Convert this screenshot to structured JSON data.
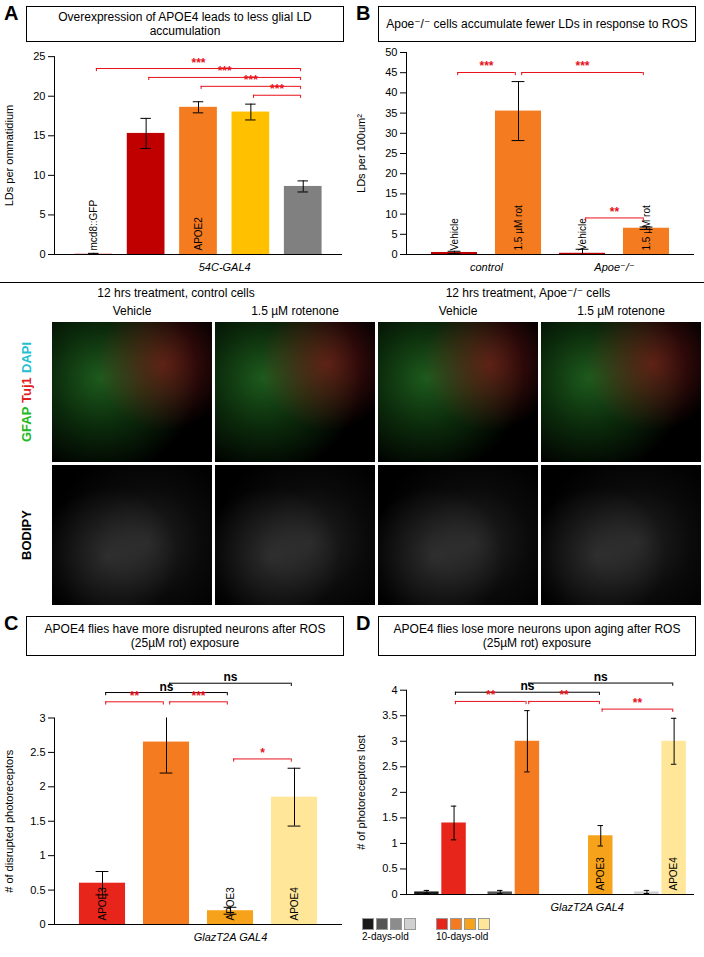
{
  "chart_data": [
    {
      "panel": "A",
      "type": "bar",
      "title": "Overexpression of APOE4 leads to less glial LD accumulation",
      "y_label": "LDs per ommatidium",
      "categories": [
        "mcd8::GFP",
        null,
        "APOE2",
        null,
        null
      ],
      "values": [
        0.1,
        15.3,
        18.6,
        18.0,
        8.6
      ],
      "errors": [
        0.05,
        1.9,
        0.7,
        1.0,
        0.7
      ],
      "colors": [
        "#f4b6b6",
        "#c00000",
        "#f47b20",
        "#ffc000",
        "#808080"
      ],
      "ylim": [
        0,
        25
      ],
      "yticks": [
        0,
        5,
        10,
        15,
        20,
        25
      ],
      "x_groups": [
        {
          "label": "54C-GAL4",
          "from": 1,
          "to": 4
        }
      ],
      "annotations": [
        {
          "from": 3,
          "to": 4,
          "label": "***",
          "color": "#e8101a"
        },
        {
          "from": 2,
          "to": 4,
          "label": "***",
          "color": "#e8101a"
        },
        {
          "from": 1,
          "to": 4,
          "label": "***",
          "color": "#e8101a"
        },
        {
          "from": 0,
          "to": 4,
          "label": "***",
          "color": "#e8101a"
        }
      ]
    },
    {
      "panel": "B",
      "type": "bar",
      "title": "Apoe⁻/⁻ cells accumulate fewer LDs in response to ROS",
      "y_label": "LDs per 100um²",
      "categories": [
        "Vehicle",
        "1.5 µM rot",
        "Vehicle",
        "1.5 µM rot"
      ],
      "values": [
        0.5,
        35.5,
        0.3,
        6.5
      ],
      "errors": [
        0.3,
        7.3,
        1.0,
        0.3
      ],
      "colors": [
        "#c00000",
        "#f47b20",
        "#c00000",
        "#f47b20"
      ],
      "ylim": [
        0,
        50
      ],
      "yticks": [
        0,
        5,
        10,
        15,
        20,
        25,
        30,
        35,
        40,
        45,
        50
      ],
      "x_groups": [
        {
          "label": "control",
          "from": 0,
          "to": 1
        },
        {
          "label": "Apoe⁻/⁻",
          "from": 2,
          "to": 3
        }
      ],
      "annotations": [
        {
          "from": 0,
          "to": 1,
          "label": "***",
          "color": "#e8101a"
        },
        {
          "from": 2,
          "to": 3,
          "label": "**",
          "color": "#e8101a"
        },
        {
          "from": 1,
          "to": 3,
          "label": "***",
          "color": "#e8101a"
        }
      ]
    },
    {
      "panel": "C",
      "type": "bar",
      "title": "APOE4 flies have more disrupted neurons after ROS (25µM rot) exposure",
      "y_label": "# of disrupted photoreceptors",
      "categories": [
        "APOE3",
        null,
        "APOE3",
        "APOE4"
      ],
      "values": [
        0.6,
        2.65,
        0.2,
        1.85
      ],
      "errors": [
        0.17,
        0.45,
        0.05,
        0.42
      ],
      "colors": [
        "#e8251a",
        "#f47b20",
        "#f7a21b",
        "#ffe699"
      ],
      "ylim": [
        0,
        3
      ],
      "yticks": [
        0,
        0.5,
        1,
        1.5,
        2,
        2.5,
        3
      ],
      "x_groups": [
        {
          "label": "GlazT2A GAL4",
          "from": 1,
          "to": 3
        }
      ],
      "annotations": [
        {
          "from": 0,
          "to": 1,
          "label": "**",
          "color": "#e8101a"
        },
        {
          "from": 1,
          "to": 2,
          "label": "***",
          "color": "#e8101a"
        },
        {
          "from": 2,
          "to": 3,
          "label": "*",
          "color": "#e8101a"
        },
        {
          "from": 0,
          "to": 2,
          "label": "ns",
          "color": "#000000"
        },
        {
          "from": 1,
          "to": 3,
          "label": "ns",
          "color": "#000000"
        }
      ]
    },
    {
      "panel": "D",
      "type": "grouped_bar",
      "title": "APOE4 flies lose more neurons upon aging after ROS (25µM rot) exposure",
      "y_label": "# of photoreceptors lost",
      "categories": [
        null,
        null,
        "APOE3",
        "APOE4"
      ],
      "series": [
        {
          "name": "2-days-old",
          "colors": [
            "#1a1a1a",
            "#555555",
            "#8c8c8c",
            "#d0d0d0"
          ],
          "values": [
            0.05,
            0.05,
            0.0,
            0.05
          ],
          "errors": [
            0.03,
            0.03,
            0.0,
            0.03
          ]
        },
        {
          "name": "10-days-old",
          "colors": [
            "#e8251a",
            "#f47b20",
            "#f7a21b",
            "#ffe699"
          ],
          "values": [
            1.4,
            3.0,
            1.15,
            3.0
          ],
          "errors": [
            0.33,
            0.6,
            0.2,
            0.45
          ]
        }
      ],
      "ylim": [
        0,
        4
      ],
      "yticks": [
        0,
        0.5,
        1,
        1.5,
        2,
        2.5,
        3,
        3.5,
        4
      ],
      "legend": "bottom-left",
      "x_groups": [
        {
          "label": "GlazT2A GAL4",
          "from": 1,
          "to": 3
        }
      ],
      "annotations": [
        {
          "from": 0,
          "to": 1,
          "label": "**",
          "color": "#e8101a"
        },
        {
          "from": 1,
          "to": 2,
          "label": "**",
          "color": "#e8101a"
        },
        {
          "from": 2,
          "to": 3,
          "label": "**",
          "color": "#e8101a"
        },
        {
          "from": 0,
          "to": 2,
          "label": "ns",
          "color": "#000000"
        },
        {
          "from": 1,
          "to": 3,
          "label": "ns",
          "color": "#000000"
        }
      ]
    }
  ],
  "image_panels": {
    "headers": [
      "12 hrs treatment, control cells",
      "12 hrs treatment, Apoe⁻/⁻ cells"
    ],
    "columns": [
      "Vehicle",
      "1.5 µM rotenone",
      "Vehicle",
      "1.5 µM rotenone"
    ],
    "rows": [
      [
        {
          "text": "GFAP",
          "color": "#22b822"
        },
        {
          "text": "Tuj1",
          "color": "#e02020"
        },
        {
          "text": "DAPI",
          "color": "#1fc0d0"
        }
      ],
      [
        {
          "text": "BODIPY",
          "color": "#000000"
        }
      ]
    ]
  }
}
